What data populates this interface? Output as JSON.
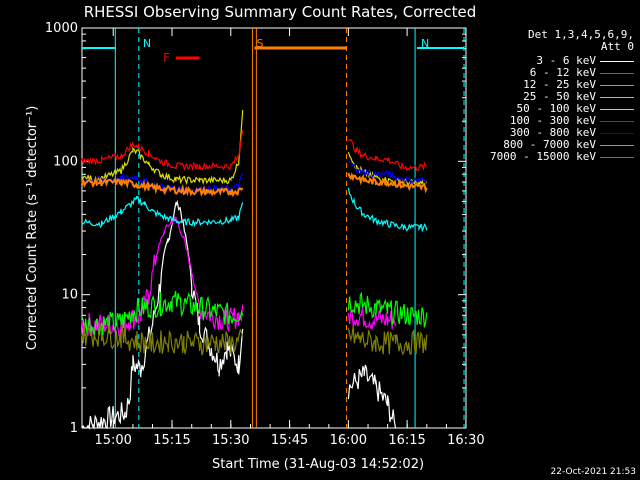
{
  "chart_data": {
    "type": "line",
    "title": "RHESSI Observing Summary Count Rates, Corrected",
    "xlabel": "Start Time (31-Aug-03 14:52:02)",
    "ylabel": "Corrected Count Rate (s⁻¹ detector⁻¹)",
    "yscale": "log",
    "ylim": [
      1,
      1000
    ],
    "xlim_minutes": [
      0,
      98
    ],
    "x_ticks": [
      {
        "label": "15:00",
        "minute": 7.97
      },
      {
        "label": "15:15",
        "minute": 22.97
      },
      {
        "label": "15:30",
        "minute": 37.97
      },
      {
        "label": "15:45",
        "minute": 52.97
      },
      {
        "label": "16:00",
        "minute": 67.97
      },
      {
        "label": "16:15",
        "minute": 82.97
      },
      {
        "label": "16:30",
        "minute": 97.97
      }
    ],
    "y_ticks": [
      {
        "label": "1",
        "value": 1
      },
      {
        "label": "10",
        "value": 10
      },
      {
        "label": "100",
        "value": 100
      },
      {
        "label": "1000",
        "value": 1000
      }
    ],
    "legend_header": [
      "Det 1,3,4,5,6,9,",
      "Att 0"
    ],
    "series": [
      {
        "name": "3 - 6 keV",
        "color": "#ffffff",
        "values": [
          [
            0,
            1
          ],
          [
            11,
            1.3
          ],
          [
            12,
            1.6
          ],
          [
            13,
            3
          ],
          [
            15,
            2.8
          ],
          [
            18,
            6
          ],
          [
            20,
            12
          ],
          [
            22,
            25
          ],
          [
            24,
            48
          ],
          [
            25,
            45
          ],
          [
            27,
            22
          ],
          [
            28,
            12
          ],
          [
            30,
            6
          ],
          [
            33,
            4
          ],
          [
            35,
            3
          ],
          [
            37,
            4
          ],
          [
            40,
            3
          ],
          [
            41,
            6
          ],
          [
            67,
            null
          ],
          [
            68,
            2
          ],
          [
            72,
            2.5
          ],
          [
            75,
            2
          ],
          [
            78,
            1.5
          ],
          [
            80,
            1
          ],
          [
            98,
            null
          ]
        ]
      },
      {
        "name": "6 - 12 keV",
        "color": "#ff00ff",
        "values": [
          [
            0,
            6
          ],
          [
            11,
            6
          ],
          [
            12,
            6.5
          ],
          [
            15,
            7
          ],
          [
            17,
            10
          ],
          [
            19,
            20
          ],
          [
            21,
            30
          ],
          [
            23,
            36
          ],
          [
            24,
            37
          ],
          [
            26,
            26
          ],
          [
            28,
            15
          ],
          [
            30,
            8
          ],
          [
            33,
            7
          ],
          [
            36,
            6.5
          ],
          [
            38,
            6.5
          ],
          [
            40,
            7
          ],
          [
            41,
            7
          ],
          [
            67,
            null
          ],
          [
            68,
            7
          ],
          [
            71,
            7
          ],
          [
            74,
            6.5
          ],
          [
            78,
            6.5
          ],
          [
            80,
            6.5
          ],
          [
            98,
            null
          ]
        ]
      },
      {
        "name": "12 - 25 keV",
        "color": "#00ff00",
        "values": [
          [
            0,
            6
          ],
          [
            5,
            6
          ],
          [
            10,
            6.2
          ],
          [
            13,
            7.5
          ],
          [
            16,
            8
          ],
          [
            20,
            8.5
          ],
          [
            23,
            9
          ],
          [
            26,
            8.5
          ],
          [
            30,
            8
          ],
          [
            34,
            7.5
          ],
          [
            38,
            7
          ],
          [
            41,
            7.5
          ],
          [
            67,
            null
          ],
          [
            68,
            9
          ],
          [
            71,
            8.5
          ],
          [
            75,
            8
          ],
          [
            78,
            7.5
          ],
          [
            84,
            7
          ],
          [
            88,
            7
          ],
          [
            98,
            null
          ]
        ]
      },
      {
        "name": "25 - 50 keV",
        "color": "#00ffff",
        "values": [
          [
            0,
            35
          ],
          [
            5,
            34
          ],
          [
            10,
            42
          ],
          [
            14,
            52
          ],
          [
            16,
            48
          ],
          [
            18,
            42
          ],
          [
            22,
            37
          ],
          [
            26,
            35
          ],
          [
            32,
            35
          ],
          [
            38,
            36
          ],
          [
            40,
            38
          ],
          [
            41,
            48
          ],
          [
            67,
            null
          ],
          [
            68,
            60
          ],
          [
            70,
            46
          ],
          [
            72,
            40
          ],
          [
            75,
            36
          ],
          [
            78,
            34
          ],
          [
            82,
            32
          ],
          [
            86,
            32
          ],
          [
            88,
            32
          ],
          [
            98,
            null
          ]
        ]
      },
      {
        "name": "50 - 100 keV",
        "color": "#dddd00",
        "values": [
          [
            0,
            75
          ],
          [
            5,
            74
          ],
          [
            10,
            85
          ],
          [
            13,
            120
          ],
          [
            14,
            118
          ],
          [
            17,
            95
          ],
          [
            20,
            80
          ],
          [
            24,
            73
          ],
          [
            30,
            72
          ],
          [
            38,
            72
          ],
          [
            40,
            100
          ],
          [
            41,
            230
          ],
          [
            67,
            null
          ],
          [
            68,
            120
          ],
          [
            70,
            90
          ],
          [
            72,
            82
          ],
          [
            75,
            76
          ],
          [
            78,
            72
          ],
          [
            82,
            70
          ],
          [
            86,
            68
          ],
          [
            88,
            68
          ],
          [
            98,
            null
          ]
        ]
      },
      {
        "name": "100 - 300 keV",
        "color": "#ff0000",
        "values": [
          [
            0,
            100
          ],
          [
            5,
            102
          ],
          [
            10,
            110
          ],
          [
            13,
            135
          ],
          [
            15,
            125
          ],
          [
            17,
            115
          ],
          [
            20,
            100
          ],
          [
            24,
            92
          ],
          [
            30,
            92
          ],
          [
            38,
            92
          ],
          [
            40,
            110
          ],
          [
            41,
            180
          ],
          [
            67,
            null
          ],
          [
            68,
            150
          ],
          [
            70,
            120
          ],
          [
            72,
            110
          ],
          [
            75,
            105
          ],
          [
            78,
            103
          ],
          [
            82,
            90
          ],
          [
            86,
            90
          ],
          [
            88,
            92
          ],
          [
            98,
            null
          ]
        ]
      },
      {
        "name": "300 - 800 keV",
        "color": "#0000ff",
        "values": [
          [
            0,
            73
          ],
          [
            5,
            73
          ],
          [
            10,
            74
          ],
          [
            14,
            76
          ],
          [
            17,
            68
          ],
          [
            21,
            64
          ],
          [
            26,
            62
          ],
          [
            32,
            62
          ],
          [
            38,
            62
          ],
          [
            40,
            65
          ],
          [
            41,
            80
          ],
          [
            67,
            null
          ],
          [
            68,
            100
          ],
          [
            70,
            88
          ],
          [
            72,
            82
          ],
          [
            75,
            80
          ],
          [
            78,
            80
          ],
          [
            82,
            73
          ],
          [
            86,
            72
          ],
          [
            88,
            72
          ],
          [
            98,
            null
          ]
        ]
      },
      {
        "name": "800 - 7000 keV",
        "color": "#ff8000",
        "values": [
          [
            0,
            70
          ],
          [
            5,
            69
          ],
          [
            10,
            70
          ],
          [
            14,
            67
          ],
          [
            17,
            64
          ],
          [
            21,
            62
          ],
          [
            26,
            60
          ],
          [
            32,
            59
          ],
          [
            38,
            59
          ],
          [
            40,
            60
          ],
          [
            41,
            65
          ],
          [
            67,
            null
          ],
          [
            68,
            80
          ],
          [
            70,
            76
          ],
          [
            72,
            72
          ],
          [
            75,
            70
          ],
          [
            78,
            70
          ],
          [
            82,
            66
          ],
          [
            86,
            64
          ],
          [
            88,
            64
          ],
          [
            98,
            null
          ]
        ]
      },
      {
        "name": "7000 - 15000 keV",
        "color": "#808000",
        "values": [
          [
            0,
            5
          ],
          [
            5,
            5
          ],
          [
            10,
            4.8
          ],
          [
            14,
            4.5
          ],
          [
            18,
            4.3
          ],
          [
            22,
            4.5
          ],
          [
            26,
            4.4
          ],
          [
            30,
            4.3
          ],
          [
            34,
            4.4
          ],
          [
            38,
            4.3
          ],
          [
            41,
            4.5
          ],
          [
            67,
            null
          ],
          [
            68,
            5
          ],
          [
            71,
            4.6
          ],
          [
            75,
            4.4
          ],
          [
            80,
            4.3
          ],
          [
            88,
            4.4
          ],
          [
            98,
            null
          ]
        ]
      }
    ],
    "annotations": [
      {
        "label": "N",
        "minute": 14.5,
        "color": "#00ffff",
        "bar_from": 0,
        "bar_to": 8.5
      },
      {
        "label": "N",
        "minute": 85.5,
        "color": "#00ffff",
        "bar_from": 85.5,
        "bar_to": 97.5
      },
      {
        "label": "F",
        "color": "#ff0000",
        "bar_from": 24,
        "bar_to": 30
      },
      {
        "label": "S",
        "minute": 43.5,
        "color": "#ff8000",
        "bar_from": 44,
        "bar_to": 67.5
      }
    ],
    "shaded_lines": {
      "cyan_solid": [
        8.5,
        85
      ],
      "cyan_dashed": [
        14.5,
        97.5
      ],
      "orange_solid": [
        43.5,
        44.5
      ],
      "orange_dashed": [
        67.5
      ]
    },
    "timestamp": "22-Oct-2021 21:53"
  }
}
